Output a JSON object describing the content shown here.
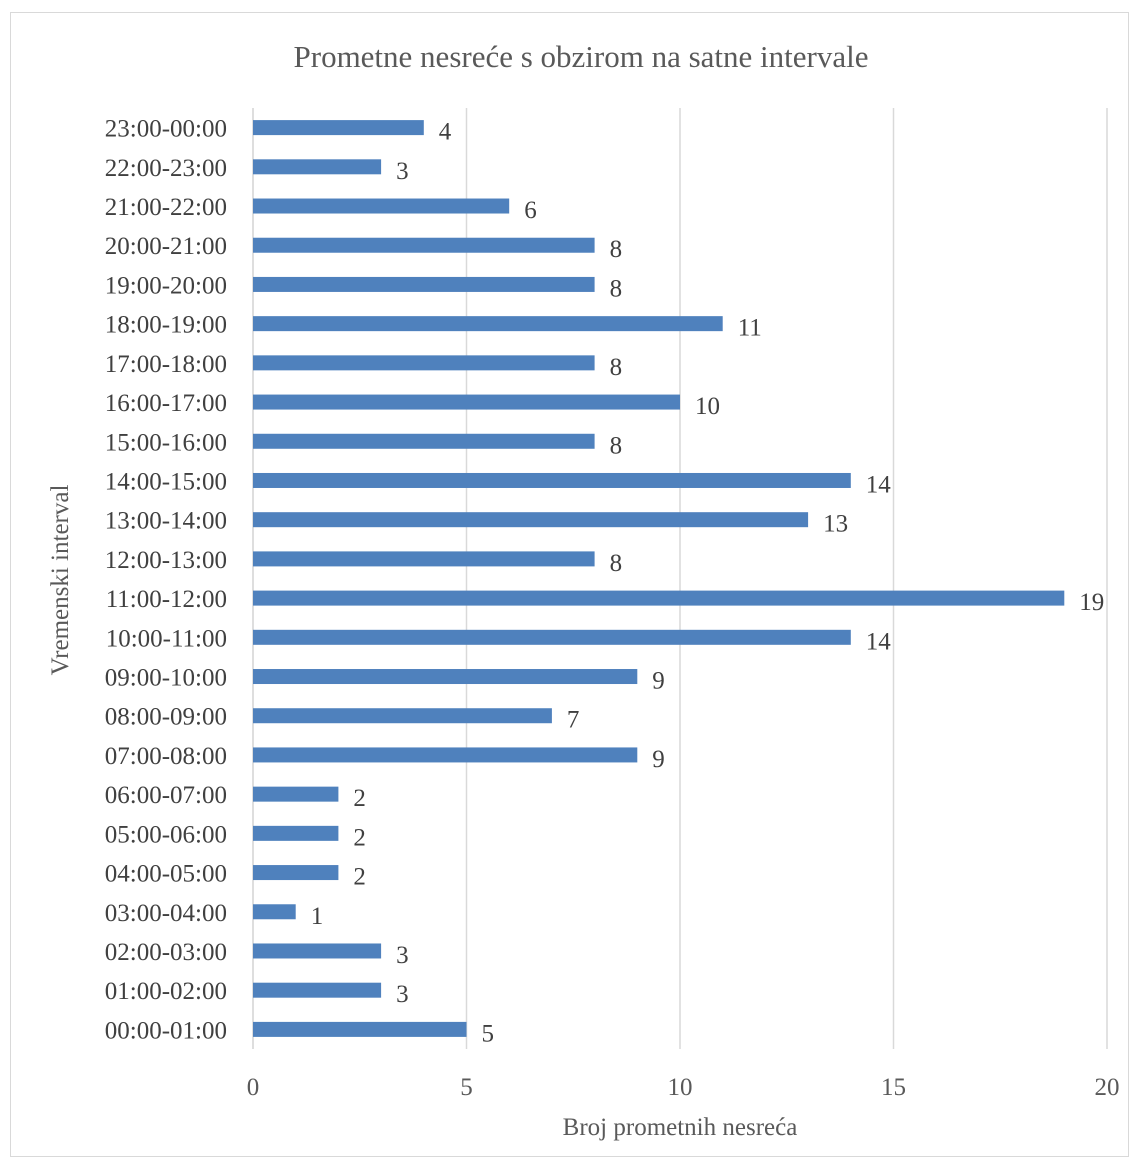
{
  "chart_data": {
    "type": "bar",
    "orientation": "horizontal",
    "title": "Prometne nesreće s obzirom na satne intervale",
    "xlabel": "Broj prometnih nesreća",
    "ylabel": "Vremenski interval",
    "categories": [
      "00:00-01:00",
      "01:00-02:00",
      "02:00-03:00",
      "03:00-04:00",
      "04:00-05:00",
      "05:00-06:00",
      "06:00-07:00",
      "07:00-08:00",
      "08:00-09:00",
      "09:00-10:00",
      "10:00-11:00",
      "11:00-12:00",
      "12:00-13:00",
      "13:00-14:00",
      "14:00-15:00",
      "15:00-16:00",
      "16:00-17:00",
      "17:00-18:00",
      "18:00-19:00",
      "19:00-20:00",
      "20:00-21:00",
      "21:00-22:00",
      "22:00-23:00",
      "23:00-00:00"
    ],
    "values": [
      5,
      3,
      3,
      1,
      2,
      2,
      2,
      9,
      7,
      9,
      14,
      19,
      8,
      13,
      14,
      8,
      10,
      8,
      11,
      8,
      8,
      6,
      3,
      4
    ],
    "xlim": [
      0,
      20
    ],
    "xticks": [
      0,
      5,
      10,
      15,
      20
    ],
    "grid": true,
    "data_labels": true,
    "legend": "none",
    "bar_color": "#4f81bd",
    "grid_color": "#d9d9d9"
  }
}
